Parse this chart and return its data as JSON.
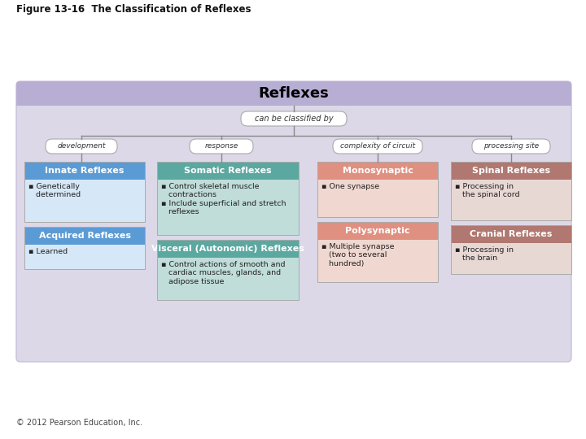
{
  "figure_title": "Figure 13-16  The Classification of Reflexes",
  "copyright": "© 2012 Pearson Education, Inc.",
  "bg_outer": "#ffffff",
  "bg_panel": "#dcd8e8",
  "top_box_text": "Reflexes",
  "top_box_bg": "#b8aed4",
  "top_box_text_color": "#000000",
  "classified_text": "can be classified by",
  "category_labels": [
    "development",
    "response",
    "complexity of circuit",
    "processing site"
  ],
  "columns": [
    {
      "header": "Innate Reflexes",
      "header_bg": "#5b9bd5",
      "header_text_color": "#ffffff",
      "body_bg": "#d6e8f7",
      "body_text": "▪ Genetically\n   determined",
      "header2": "Acquired Reflexes",
      "header2_bg": "#5b9bd5",
      "header2_text_color": "#ffffff",
      "body2_bg": "#d6e8f7",
      "body2_text": "▪ Learned"
    },
    {
      "header": "Somatic Reflexes",
      "header_bg": "#5ba8a0",
      "header_text_color": "#ffffff",
      "body_bg": "#c0ddd9",
      "body_text": "▪ Control skeletal muscle\n   contractions\n▪ Include superficial and stretch\n   reflexes",
      "header2": "Visceral (Autonomic) Reflexes",
      "header2_bg": "#5ba8a0",
      "header2_text_color": "#ffffff",
      "body2_bg": "#c0ddd9",
      "body2_text": "▪ Control actions of smooth and\n   cardiac muscles, glands, and\n   adipose tissue"
    },
    {
      "header": "Monosynaptic",
      "header_bg": "#e09080",
      "header_text_color": "#ffffff",
      "body_bg": "#f0d8d0",
      "body_text": "▪ One synapse",
      "header2": "Polysynaptic",
      "header2_bg": "#e09080",
      "header2_text_color": "#ffffff",
      "body2_bg": "#f0d8d0",
      "body2_text": "▪ Multiple synapse\n   (two to several\n   hundred)"
    },
    {
      "header": "Spinal Reflexes",
      "header_bg": "#b07870",
      "header_text_color": "#ffffff",
      "body_bg": "#e8d8d4",
      "body_text": "▪ Processing in\n   the spinal cord",
      "header2": "Cranial Reflexes",
      "header2_bg": "#b07870",
      "header2_text_color": "#ffffff",
      "body2_bg": "#e8d8d4",
      "body2_text": "▪ Processing in\n   the brain"
    }
  ]
}
